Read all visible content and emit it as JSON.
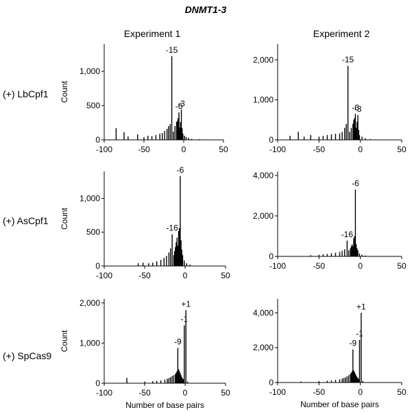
{
  "figure": {
    "title": "DNMT1-3",
    "columns": [
      "Experiment 1",
      "Experiment 2"
    ],
    "rows": [
      "(+) LbCpf1",
      "(+) AsCpf1",
      "(+) SpCas9"
    ]
  },
  "chart_data": [
    {
      "type": "bar",
      "condition": "(+) LbCpf1",
      "experiment": "Experiment 1",
      "xlabel": "",
      "ylabel": "Count",
      "xlim": [
        -100,
        50
      ],
      "ylim": [
        0,
        1400
      ],
      "xticks": [
        -100,
        -50,
        0,
        50
      ],
      "yticks": [
        0,
        500,
        1000
      ],
      "ytick_labels": [
        "0",
        "500",
        "1,000"
      ],
      "x": [
        -85,
        -75,
        -70,
        -58,
        -50,
        -45,
        -40,
        -35,
        -30,
        -27,
        -24,
        -21,
        -19,
        -17,
        -15,
        -13,
        -11,
        -9,
        -8,
        -7,
        -6,
        -5,
        -4,
        -3,
        -2,
        -1,
        1,
        3,
        6,
        10,
        20
      ],
      "values": [
        170,
        110,
        50,
        80,
        40,
        60,
        55,
        70,
        90,
        100,
        130,
        160,
        200,
        230,
        1220,
        120,
        200,
        260,
        280,
        320,
        400,
        180,
        260,
        440,
        170,
        90,
        60,
        40,
        30,
        15,
        10
      ],
      "annotations": [
        {
          "x": -15,
          "text": "-15"
        },
        {
          "x": -6,
          "text": "-6"
        },
        {
          "x": -3,
          "text": "-3"
        }
      ]
    },
    {
      "type": "bar",
      "condition": "(+) LbCpf1",
      "experiment": "Experiment 2",
      "xlabel": "",
      "ylabel": "",
      "xlim": [
        -100,
        50
      ],
      "ylim": [
        0,
        2400
      ],
      "xticks": [
        -100,
        -50,
        0,
        50
      ],
      "yticks": [
        0,
        1000,
        2000
      ],
      "ytick_labels": [
        "0",
        "1,000",
        "2,000"
      ],
      "x": [
        -85,
        -75,
        -68,
        -60,
        -50,
        -45,
        -40,
        -35,
        -30,
        -25,
        -22,
        -19,
        -17,
        -15,
        -13,
        -11,
        -9,
        -8,
        -7,
        -6,
        -5,
        -4,
        -3,
        -2,
        -1,
        2,
        6,
        12
      ],
      "values": [
        100,
        200,
        80,
        120,
        80,
        100,
        120,
        140,
        150,
        160,
        200,
        300,
        400,
        1850,
        200,
        300,
        400,
        500,
        550,
        650,
        300,
        450,
        620,
        250,
        120,
        80,
        40,
        20
      ],
      "annotations": [
        {
          "x": -15,
          "text": "-15"
        },
        {
          "x": -6,
          "text": "-6"
        },
        {
          "x": -3,
          "text": "-3"
        }
      ]
    },
    {
      "type": "bar",
      "condition": "(+) AsCpf1",
      "experiment": "Experiment 1",
      "xlabel": "",
      "ylabel": "Count",
      "xlim": [
        -100,
        50
      ],
      "ylim": [
        0,
        1400
      ],
      "xticks": [
        -100,
        -50,
        0,
        50
      ],
      "yticks": [
        0,
        500,
        1000
      ],
      "ytick_labels": [
        "0",
        "500",
        "1,000"
      ],
      "x": [
        -58,
        -52,
        -45,
        -40,
        -35,
        -30,
        -26,
        -23,
        -20,
        -18,
        -16,
        -14,
        -13,
        -12,
        -11,
        -10,
        -9,
        -8,
        -7,
        -6,
        -5,
        -4,
        -3,
        -1,
        2,
        6
      ],
      "values": [
        40,
        50,
        40,
        50,
        70,
        90,
        120,
        150,
        200,
        260,
        470,
        160,
        220,
        280,
        350,
        420,
        300,
        520,
        560,
        1330,
        380,
        240,
        160,
        80,
        40,
        20
      ],
      "annotations": [
        {
          "x": -16,
          "text": "-16"
        },
        {
          "x": -6,
          "text": "-6"
        }
      ]
    },
    {
      "type": "bar",
      "condition": "(+) AsCpf1",
      "experiment": "Experiment 2",
      "xlabel": "",
      "ylabel": "",
      "xlim": [
        -100,
        50
      ],
      "ylim": [
        0,
        4200
      ],
      "xticks": [
        -100,
        -50,
        0,
        50
      ],
      "yticks": [
        0,
        2000,
        4000
      ],
      "ytick_labels": [
        "0",
        "2,000",
        "4,000"
      ],
      "x": [
        -60,
        -50,
        -45,
        -40,
        -35,
        -30,
        -25,
        -22,
        -19,
        -16,
        -14,
        -12,
        -11,
        -10,
        -9,
        -8,
        -7,
        -6,
        -5,
        -4,
        -3,
        -1,
        2,
        6
      ],
      "values": [
        60,
        80,
        100,
        120,
        150,
        180,
        220,
        280,
        350,
        780,
        300,
        400,
        500,
        600,
        500,
        900,
        1000,
        3300,
        600,
        400,
        300,
        150,
        80,
        40
      ],
      "annotations": [
        {
          "x": -16,
          "text": "-16"
        },
        {
          "x": -6,
          "text": "-6"
        }
      ]
    },
    {
      "type": "bar",
      "condition": "(+) SpCas9",
      "experiment": "Experiment 1",
      "xlabel": "Number of base pairs",
      "ylabel": "Count",
      "xlim": [
        -100,
        50
      ],
      "ylim": [
        0,
        2100
      ],
      "xticks": [
        -100,
        -50,
        0,
        50
      ],
      "yticks": [
        0,
        1000,
        2000
      ],
      "ytick_labels": [
        "0",
        "1,000",
        "2,000"
      ],
      "x": [
        -72,
        -50,
        -40,
        -35,
        -30,
        -25,
        -22,
        -20,
        -18,
        -16,
        -14,
        -12,
        -11,
        -10,
        -9,
        -8,
        -7,
        -6,
        -5,
        -4,
        -3,
        -2,
        -1,
        1,
        3
      ],
      "values": [
        130,
        40,
        50,
        60,
        70,
        90,
        110,
        130,
        150,
        180,
        200,
        230,
        260,
        300,
        880,
        350,
        300,
        250,
        200,
        150,
        120,
        100,
        1440,
        1820,
        40
      ],
      "annotations": [
        {
          "x": -9,
          "text": "-9"
        },
        {
          "x": -1,
          "text": "-1"
        },
        {
          "x": 1,
          "text": "+1"
        }
      ]
    },
    {
      "type": "bar",
      "condition": "(+) SpCas9",
      "experiment": "Experiment 2",
      "xlabel": "Number of base pairs",
      "ylabel": "",
      "xlim": [
        -100,
        50
      ],
      "ylim": [
        0,
        4800
      ],
      "xticks": [
        -100,
        -50,
        0,
        50
      ],
      "yticks": [
        0,
        2000,
        4000
      ],
      "ytick_labels": [
        "0",
        "2,000",
        "4,000"
      ],
      "x": [
        -72,
        -50,
        -40,
        -35,
        -30,
        -25,
        -22,
        -20,
        -18,
        -16,
        -14,
        -12,
        -11,
        -10,
        -9,
        -8,
        -7,
        -6,
        -5,
        -4,
        -3,
        -2,
        -1,
        1,
        3
      ],
      "values": [
        60,
        80,
        100,
        120,
        150,
        180,
        220,
        260,
        300,
        360,
        420,
        500,
        560,
        640,
        1900,
        700,
        600,
        500,
        400,
        320,
        260,
        200,
        2450,
        4000,
        80
      ],
      "annotations": [
        {
          "x": -9,
          "text": "-9"
        },
        {
          "x": -1,
          "text": "-1"
        },
        {
          "x": 1,
          "text": "+1"
        }
      ]
    }
  ]
}
